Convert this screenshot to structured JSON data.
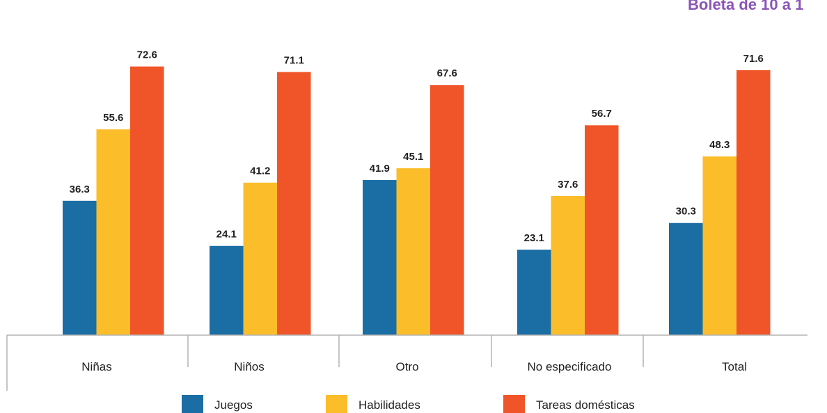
{
  "header": {
    "title_fragment": "Boleta de 10 a 1",
    "title_color": "#8a55b8"
  },
  "chart_data": {
    "type": "bar",
    "categories": [
      "Niñas",
      "Niños",
      "Otro",
      "No especificado",
      "Total"
    ],
    "series": [
      {
        "name": "Juegos",
        "color": "#1b6ea4",
        "values": [
          36.3,
          24.1,
          41.9,
          23.1,
          30.3
        ]
      },
      {
        "name": "Habilidades",
        "color": "#fbbd2a",
        "values": [
          55.6,
          41.2,
          45.1,
          37.6,
          48.3
        ]
      },
      {
        "name": "Tareas domésticas",
        "color": "#f0552a",
        "values": [
          72.6,
          71.1,
          67.6,
          56.7,
          71.6
        ]
      }
    ],
    "value_labels": [
      [
        "36.3",
        "24.1",
        "41.9",
        "23.1",
        "30.3"
      ],
      [
        "55.6",
        "41.2",
        "45.1",
        "37.6",
        "48.3"
      ],
      [
        "72.6",
        "71.1",
        "67.6",
        "56.7",
        "71.6"
      ]
    ],
    "ylim": [
      0,
      80
    ],
    "grid": false,
    "legend_position": "bottom"
  }
}
